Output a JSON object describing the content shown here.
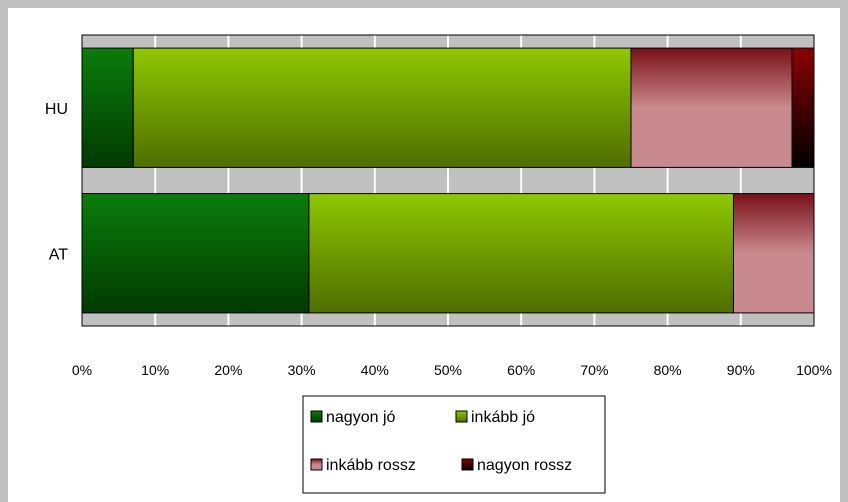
{
  "chart_data": {
    "type": "bar",
    "orientation": "horizontal",
    "stacked": true,
    "percent": true,
    "categories": [
      "HU",
      "AT"
    ],
    "series": [
      {
        "name": "nagyon jó",
        "values": [
          7,
          31
        ],
        "color": "#0b7d0b"
      },
      {
        "name": "inkább jó",
        "values": [
          68,
          58
        ],
        "color": "#8fc800"
      },
      {
        "name": "inkább rossz",
        "values": [
          22,
          11
        ],
        "color": "#c98a8f"
      },
      {
        "name": "nagyon rossz",
        "values": [
          3,
          0
        ],
        "color": "#8b0000"
      }
    ],
    "xticks": [
      "0%",
      "10%",
      "20%",
      "30%",
      "40%",
      "50%",
      "60%",
      "70%",
      "80%",
      "90%",
      "100%"
    ],
    "xlim": [
      0,
      100
    ],
    "grid": true,
    "legend": "bottom",
    "plot_background": "#c0c0c0"
  }
}
